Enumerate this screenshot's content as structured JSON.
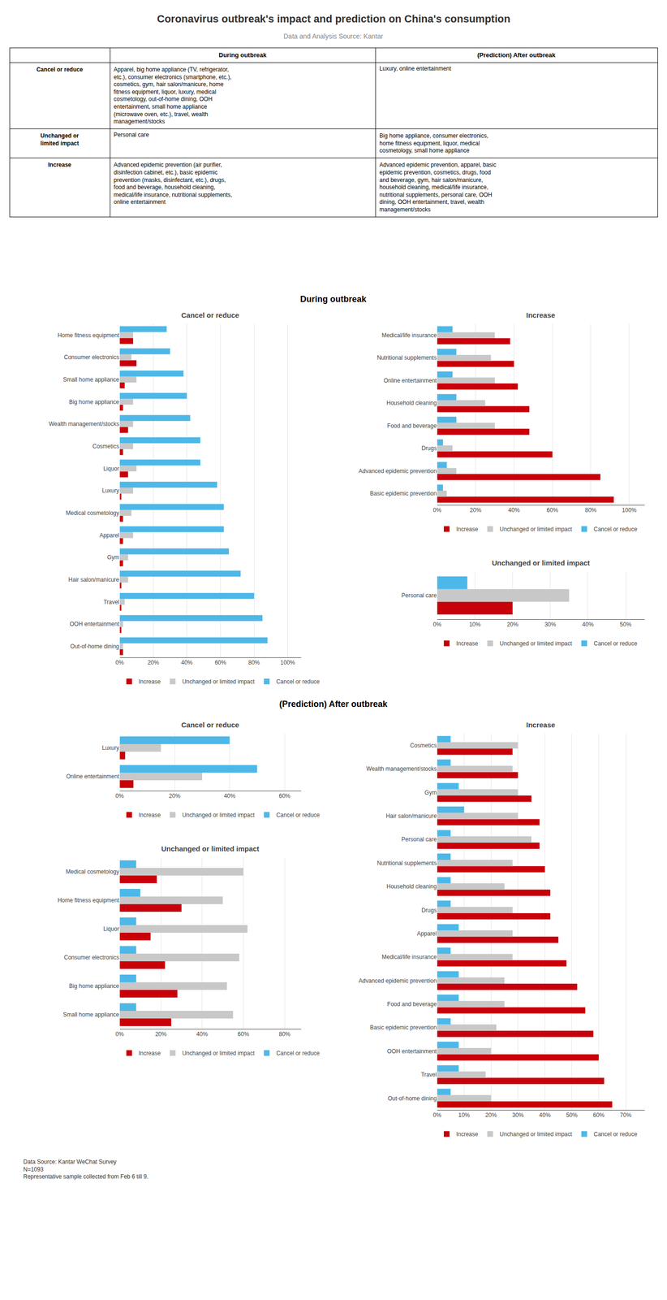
{
  "title": "Coronavirus outbreak's impact and prediction on China's consumption",
  "subtitle": "Data and Analysis Source: Kantar",
  "table": {
    "header": [
      "During outbreak",
      "(Prediction) After outbreak"
    ],
    "rows": [
      {
        "label": "Cancel or reduce",
        "during": "Apparel, big home appliance (TV, refrigerator,\netc.), consumer electronics (smartphone, etc.),\ncosmetics, gym, hair salon/manicure, home\nfitness equipment, liquor, luxury, medical\ncosmetology, out-of-home dining, OOH\nentertainment, small home appliance\n(microwave oven, etc.), travel, wealth\nmanagement/stocks",
        "after": "Luxury, online entertainment"
      },
      {
        "label": "Unchanged or\nlimited impact",
        "during": "Personal care",
        "after": "Big home appliance, consumer electronics,\nhome fitness equipment, liquor, medical\ncosmetology, small home appliance"
      },
      {
        "label": "Increase",
        "during": "Advanced epidemic prevention (air purifier,\ndisinfection cabinet, etc.), basic epidemic\nprevention (masks, disinfectant, etc.), drugs,\nfood and beverage, household cleaning,\nmedical/life insurance, nutritional supplements,\nonline entertainment",
        "after": "Advanced epidemic prevention, apparel, basic\nepidemic prevention, cosmetics, drugs, food\nand beverage, gym, hair salon/manicure,\nhousehold cleaning, medical/life insurance,\nnutritional supplements, personal care, OOH\ndining, OOH entertainment, travel, wealth\nmanagement/stocks"
      }
    ]
  },
  "sections": [
    "During outbreak",
    "(Prediction) After outbreak"
  ],
  "footer": "Data Source: Kantar WeChat Survey\nN=1093\nRepresentative sample collected from Feb 6 till 9.",
  "chart_data": [
    {
      "type": "bar",
      "orientation": "horizontal",
      "title": "Cancel or reduce",
      "categories": [
        "Out-of-home dining",
        "OOH entertainment",
        "Travel",
        "Hair salon/manicure",
        "Gym",
        "Apparel",
        "Medical cosmetology",
        "Luxury",
        "Liquor",
        "Cosmetics",
        "Wealth management/stocks",
        "Big home appliance",
        "Small home appliance",
        "Consumer electronics",
        "Home fitness equipment"
      ],
      "series": [
        {
          "name": "Increase",
          "color": "#C8000A",
          "values": [
            2,
            1,
            1,
            1,
            2,
            2,
            2,
            1,
            5,
            2,
            5,
            2,
            3,
            10,
            8
          ]
        },
        {
          "name": "Unchanged or limited impact",
          "color": "#C8C8C8",
          "values": [
            2,
            2,
            3,
            5,
            5,
            8,
            7,
            8,
            10,
            8,
            8,
            8,
            10,
            7,
            8
          ]
        },
        {
          "name": "Cancel or reduce",
          "color": "#4DB8E8",
          "values": [
            88,
            85,
            80,
            72,
            65,
            62,
            62,
            58,
            48,
            48,
            42,
            40,
            38,
            30,
            28
          ]
        }
      ],
      "xlim": [
        0,
        108
      ],
      "xticks": [
        {
          "value": 0,
          "label": "0%"
        },
        {
          "value": 20,
          "label": "20%"
        },
        {
          "value": 40,
          "label": "40%"
        },
        {
          "value": 60,
          "label": "60%"
        },
        {
          "value": 80,
          "label": "80%"
        },
        {
          "value": 100,
          "label": "100%"
        }
      ],
      "grid": true,
      "legend": "bottom"
    },
    {
      "type": "bar",
      "orientation": "horizontal",
      "title": "Increase",
      "categories": [
        "Basic epidemic prevention",
        "Advanced epidemic prevention",
        "Drugs",
        "Food and beverage",
        "Household cleaning",
        "Online entertainment",
        "Nutritional supplements",
        "Medical/life insurance"
      ],
      "series": [
        {
          "name": "Increase",
          "color": "#C8000A",
          "values": [
            92,
            85,
            60,
            48,
            48,
            42,
            40,
            38
          ]
        },
        {
          "name": "Unchanged or limited impact",
          "color": "#C8C8C8",
          "values": [
            5,
            10,
            8,
            30,
            25,
            30,
            28,
            30
          ]
        },
        {
          "name": "Cancel or reduce",
          "color": "#4DB8E8",
          "values": [
            3,
            5,
            3,
            10,
            10,
            8,
            10,
            8
          ]
        }
      ],
      "xlim": [
        0,
        108
      ],
      "xticks": [
        {
          "value": 0,
          "label": "0%"
        },
        {
          "value": 20,
          "label": "20%"
        },
        {
          "value": 40,
          "label": "40%"
        },
        {
          "value": 60,
          "label": "60%"
        },
        {
          "value": 80,
          "label": "80%"
        },
        {
          "value": 100,
          "label": "100%"
        }
      ],
      "grid": true,
      "legend": "bottom"
    },
    {
      "type": "bar",
      "orientation": "horizontal",
      "title": "Unchanged or limited impact",
      "categories": [
        "Personal care"
      ],
      "series": [
        {
          "name": "Increase",
          "color": "#C8000A",
          "values": [
            20
          ]
        },
        {
          "name": "Unchanged or limited impact",
          "color": "#C8C8C8",
          "values": [
            35
          ]
        },
        {
          "name": "Cancel or reduce",
          "color": "#4DB8E8",
          "values": [
            8
          ]
        }
      ],
      "xlim": [
        0,
        55
      ],
      "xticks": [
        {
          "value": 0,
          "label": "0%"
        },
        {
          "value": 10,
          "label": "10%"
        },
        {
          "value": 20,
          "label": "20%"
        },
        {
          "value": 30,
          "label": "30%"
        },
        {
          "value": 40,
          "label": "40%"
        },
        {
          "value": 50,
          "label": "50%"
        }
      ],
      "grid": true,
      "legend": "bottom"
    },
    {
      "type": "bar",
      "orientation": "horizontal",
      "title": "Cancel or reduce",
      "categories": [
        "Online entertainment",
        "Luxury"
      ],
      "series": [
        {
          "name": "Increase",
          "color": "#C8000A",
          "values": [
            5,
            2
          ]
        },
        {
          "name": "Unchanged or limited impact",
          "color": "#C8C8C8",
          "values": [
            30,
            15
          ]
        },
        {
          "name": "Cancel or reduce",
          "color": "#4DB8E8",
          "values": [
            50,
            40
          ]
        }
      ],
      "xlim": [
        0,
        66
      ],
      "xticks": [
        {
          "value": 0,
          "label": "0%"
        },
        {
          "value": 20,
          "label": "20%"
        },
        {
          "value": 40,
          "label": "40%"
        },
        {
          "value": 60,
          "label": "60%"
        }
      ],
      "grid": true,
      "legend": "bottom"
    },
    {
      "type": "bar",
      "orientation": "horizontal",
      "title": "Unchanged or limited impact",
      "categories": [
        "Small home appliance",
        "Big home appliance",
        "Consumer electronics",
        "Liquor",
        "Home fitness equipment",
        "Medical cosmetology"
      ],
      "series": [
        {
          "name": "Increase",
          "color": "#C8000A",
          "values": [
            25,
            28,
            22,
            15,
            30,
            18
          ]
        },
        {
          "name": "Unchanged or limited impact",
          "color": "#C8C8C8",
          "values": [
            55,
            52,
            58,
            62,
            50,
            60
          ]
        },
        {
          "name": "Cancel or reduce",
          "color": "#4DB8E8",
          "values": [
            8,
            8,
            8,
            8,
            10,
            8
          ]
        }
      ],
      "xlim": [
        0,
        88
      ],
      "xticks": [
        {
          "value": 0,
          "label": "0%"
        },
        {
          "value": 20,
          "label": "20%"
        },
        {
          "value": 40,
          "label": "40%"
        },
        {
          "value": 60,
          "label": "60%"
        },
        {
          "value": 80,
          "label": "80%"
        }
      ],
      "grid": true,
      "legend": "bottom"
    },
    {
      "type": "bar",
      "orientation": "horizontal",
      "title": "Increase",
      "categories": [
        "Out-of-home dining",
        "Travel",
        "OOH entertainment",
        "Basic epidemic prevention",
        "Food and beverage",
        "Advanced epidemic prevention",
        "Medical/life insurance",
        "Apparel",
        "Drugs",
        "Household cleaning",
        "Nutritional supplements",
        "Personal care",
        "Hair salon/manicure",
        "Gym",
        "Wealth management/stocks",
        "Cosmetics"
      ],
      "series": [
        {
          "name": "Increase",
          "color": "#C8000A",
          "values": [
            65,
            62,
            60,
            58,
            55,
            52,
            48,
            45,
            42,
            42,
            40,
            38,
            38,
            35,
            30,
            28
          ]
        },
        {
          "name": "Unchanged or limited impact",
          "color": "#C8C8C8",
          "values": [
            20,
            18,
            20,
            22,
            25,
            25,
            28,
            28,
            28,
            25,
            28,
            35,
            30,
            30,
            28,
            30
          ]
        },
        {
          "name": "Cancel or reduce",
          "color": "#4DB8E8",
          "values": [
            5,
            8,
            8,
            5,
            8,
            8,
            5,
            8,
            5,
            5,
            5,
            5,
            10,
            8,
            5,
            5
          ]
        }
      ],
      "xlim": [
        0,
        77
      ],
      "xticks": [
        {
          "value": 0,
          "label": "0%"
        },
        {
          "value": 10,
          "label": "10%"
        },
        {
          "value": 20,
          "label": "20%"
        },
        {
          "value": 30,
          "label": "30%"
        },
        {
          "value": 40,
          "label": "40%"
        },
        {
          "value": 50,
          "label": "50%"
        },
        {
          "value": 60,
          "label": "60%"
        },
        {
          "value": 70,
          "label": "70%"
        }
      ],
      "grid": true,
      "legend": "bottom"
    }
  ]
}
